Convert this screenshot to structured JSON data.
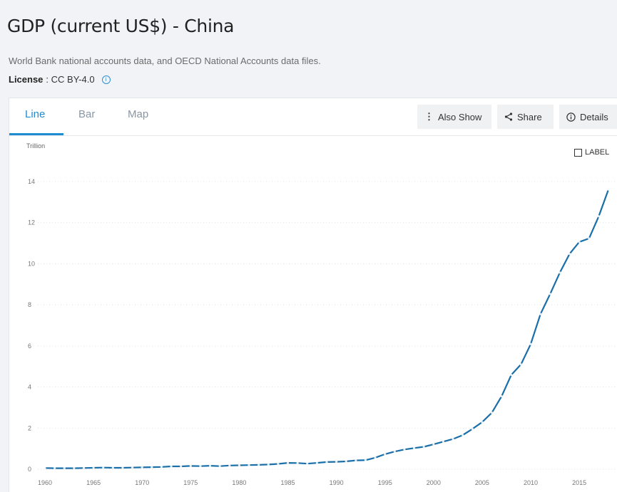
{
  "header": {
    "title": "GDP (current US$) - China",
    "source": "World Bank national accounts data, and OECD National Accounts data files.",
    "license_label": "License",
    "license_value": ": CC BY-4.0"
  },
  "tabs": [
    {
      "label": "Line",
      "active": true
    },
    {
      "label": "Bar",
      "active": false
    },
    {
      "label": "Map",
      "active": false
    }
  ],
  "toolbar": {
    "also_show": "Also Show",
    "share": "Share",
    "details": "Details"
  },
  "label_toggle": "LABEL",
  "colors": {
    "accent": "#1f8bd0",
    "line": "#1a6fa8"
  },
  "chart_data": {
    "type": "line",
    "ylabel": "Trillion",
    "ylim": [
      0,
      14
    ],
    "yticks": [
      0,
      2,
      4,
      6,
      8,
      10,
      12,
      14
    ],
    "xticks": [
      1960,
      1965,
      1970,
      1975,
      1980,
      1985,
      1990,
      1995,
      2000,
      2005,
      2010,
      2015
    ],
    "xlim": [
      1960,
      2018
    ],
    "grid": true,
    "series": [
      {
        "x": [
          1960,
          1961,
          1962,
          1963,
          1964,
          1965,
          1966,
          1967,
          1968,
          1969,
          1970,
          1971,
          1972,
          1973,
          1974,
          1975,
          1976,
          1977,
          1978,
          1979,
          1980,
          1981,
          1982,
          1983,
          1984,
          1985,
          1986,
          1987,
          1988,
          1989,
          1990,
          1991,
          1992,
          1993,
          1994,
          1995,
          1996,
          1997,
          1998,
          1999,
          2000,
          2001,
          2002,
          2003,
          2004,
          2005,
          2006,
          2007,
          2008,
          2009,
          2010,
          2011,
          2012,
          2013,
          2014,
          2015,
          2016,
          2017,
          2018
        ],
        "values": [
          0.06,
          0.05,
          0.05,
          0.05,
          0.06,
          0.07,
          0.08,
          0.07,
          0.07,
          0.08,
          0.09,
          0.1,
          0.11,
          0.14,
          0.14,
          0.16,
          0.15,
          0.17,
          0.15,
          0.18,
          0.19,
          0.2,
          0.21,
          0.23,
          0.26,
          0.31,
          0.3,
          0.27,
          0.31,
          0.35,
          0.36,
          0.38,
          0.43,
          0.44,
          0.56,
          0.73,
          0.86,
          0.96,
          1.03,
          1.09,
          1.21,
          1.34,
          1.47,
          1.66,
          1.96,
          2.29,
          2.75,
          3.55,
          4.59,
          5.1,
          6.09,
          7.55,
          8.53,
          9.57,
          10.48,
          11.06,
          11.23,
          12.31,
          13.61
        ]
      }
    ]
  }
}
